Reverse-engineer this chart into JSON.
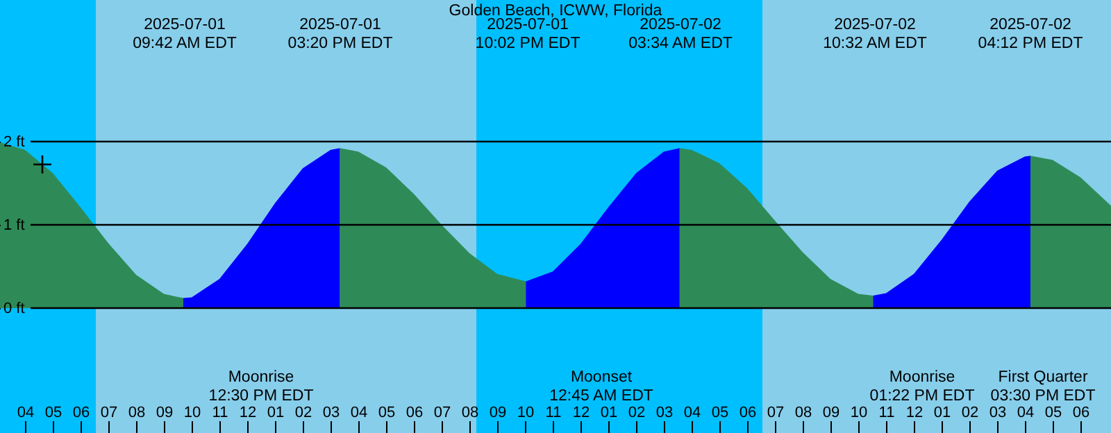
{
  "chart_data": {
    "type": "area",
    "title": "Golden Beach, ICWW, Florida",
    "x": [
      "2025-07-01T03:06",
      "2025-07-01T04:00",
      "2025-07-01T05:00",
      "2025-07-01T06:00",
      "2025-07-01T07:00",
      "2025-07-01T08:00",
      "2025-07-01T09:00",
      "2025-07-01T09:42",
      "2025-07-01T10:00",
      "2025-07-01T11:00",
      "2025-07-01T12:00",
      "2025-07-01T13:00",
      "2025-07-01T14:00",
      "2025-07-01T15:00",
      "2025-07-01T15:20",
      "2025-07-01T16:00",
      "2025-07-01T17:00",
      "2025-07-01T18:00",
      "2025-07-01T19:00",
      "2025-07-01T20:00",
      "2025-07-01T21:00",
      "2025-07-01T22:02",
      "2025-07-01T23:00",
      "2025-07-02T00:00",
      "2025-07-02T01:00",
      "2025-07-02T02:00",
      "2025-07-02T03:00",
      "2025-07-02T03:34",
      "2025-07-02T04:00",
      "2025-07-02T05:00",
      "2025-07-02T06:00",
      "2025-07-02T07:00",
      "2025-07-02T08:00",
      "2025-07-02T09:00",
      "2025-07-02T10:00",
      "2025-07-02T10:32",
      "2025-07-02T11:00",
      "2025-07-02T12:00",
      "2025-07-02T13:00",
      "2025-07-02T14:00",
      "2025-07-02T15:00",
      "2025-07-02T16:00",
      "2025-07-02T16:12",
      "2025-07-02T17:00",
      "2025-07-02T18:00",
      "2025-07-02T19:00",
      "2025-07-02T19:06"
    ],
    "series": [
      {
        "color": "#2e8b57",
        "values": [
          1.99,
          1.9,
          1.62,
          1.21,
          0.78,
          0.4,
          0.17,
          0.12,
          null,
          null,
          null,
          null,
          null,
          null,
          1.92,
          1.88,
          1.69,
          1.37,
          1.0,
          0.66,
          0.41,
          0.32,
          null,
          null,
          null,
          null,
          null,
          1.92,
          1.9,
          1.74,
          1.44,
          1.05,
          0.67,
          0.35,
          0.17,
          0.15,
          null,
          null,
          null,
          null,
          null,
          null,
          1.83,
          1.78,
          1.57,
          1.26,
          1.23
        ]
      },
      {
        "color": "#0000ff",
        "values": [
          null,
          null,
          null,
          null,
          null,
          null,
          null,
          0.12,
          0.13,
          0.35,
          0.77,
          1.26,
          1.68,
          1.9,
          1.92,
          null,
          null,
          null,
          null,
          null,
          null,
          0.32,
          0.44,
          0.77,
          1.21,
          1.62,
          1.88,
          1.92,
          null,
          null,
          null,
          null,
          null,
          null,
          null,
          0.15,
          0.18,
          0.41,
          0.82,
          1.28,
          1.65,
          1.82,
          1.83,
          null,
          null,
          null,
          null
        ]
      }
    ],
    "bands": [
      {
        "axis": "x",
        "from": "2025-07-01T03:06",
        "to": "2025-07-01T06:33",
        "color": "#00bfff"
      },
      {
        "axis": "x",
        "from": "2025-07-01T20:15",
        "to": "2025-07-02T06:33",
        "color": "#00bfff"
      }
    ],
    "xlim": [
      "2025-07-01T03:06",
      "2025-07-02T19:06"
    ],
    "xticks": [
      {
        "value": "2025-07-01T04:00",
        "label": "04"
      },
      {
        "value": "2025-07-01T05:00",
        "label": "05"
      },
      {
        "value": "2025-07-01T06:00",
        "label": "06"
      },
      {
        "value": "2025-07-01T07:00",
        "label": "07"
      },
      {
        "value": "2025-07-01T08:00",
        "label": "08"
      },
      {
        "value": "2025-07-01T09:00",
        "label": "09"
      },
      {
        "value": "2025-07-01T10:00",
        "label": "10"
      },
      {
        "value": "2025-07-01T11:00",
        "label": "11"
      },
      {
        "value": "2025-07-01T12:00",
        "label": "12"
      },
      {
        "value": "2025-07-01T13:00",
        "label": "01"
      },
      {
        "value": "2025-07-01T14:00",
        "label": "02"
      },
      {
        "value": "2025-07-01T15:00",
        "label": "03"
      },
      {
        "value": "2025-07-01T16:00",
        "label": "04"
      },
      {
        "value": "2025-07-01T17:00",
        "label": "05"
      },
      {
        "value": "2025-07-01T18:00",
        "label": "06"
      },
      {
        "value": "2025-07-01T19:00",
        "label": "07"
      },
      {
        "value": "2025-07-01T20:00",
        "label": "08"
      },
      {
        "value": "2025-07-01T21:00",
        "label": "09"
      },
      {
        "value": "2025-07-01T22:00",
        "label": "10"
      },
      {
        "value": "2025-07-01T23:00",
        "label": "11"
      },
      {
        "value": "2025-07-02T00:00",
        "label": "12"
      },
      {
        "value": "2025-07-02T01:00",
        "label": "01"
      },
      {
        "value": "2025-07-02T02:00",
        "label": "02"
      },
      {
        "value": "2025-07-02T03:00",
        "label": "03"
      },
      {
        "value": "2025-07-02T04:00",
        "label": "04"
      },
      {
        "value": "2025-07-02T05:00",
        "label": "05"
      },
      {
        "value": "2025-07-02T06:00",
        "label": "06"
      },
      {
        "value": "2025-07-02T07:00",
        "label": "07"
      },
      {
        "value": "2025-07-02T08:00",
        "label": "08"
      },
      {
        "value": "2025-07-02T09:00",
        "label": "09"
      },
      {
        "value": "2025-07-02T10:00",
        "label": "10"
      },
      {
        "value": "2025-07-02T11:00",
        "label": "11"
      },
      {
        "value": "2025-07-02T12:00",
        "label": "12"
      },
      {
        "value": "2025-07-02T13:00",
        "label": "01"
      },
      {
        "value": "2025-07-02T14:00",
        "label": "02"
      },
      {
        "value": "2025-07-02T15:00",
        "label": "03"
      },
      {
        "value": "2025-07-02T16:00",
        "label": "04"
      },
      {
        "value": "2025-07-02T17:00",
        "label": "05"
      },
      {
        "value": "2025-07-02T18:00",
        "label": "06"
      }
    ],
    "ylim": [
      -1.5,
      3.7
    ],
    "yticks": [
      {
        "value": 0,
        "label": "0 ft"
      },
      {
        "value": 1,
        "label": "1 ft"
      },
      {
        "value": 2,
        "label": "2 ft"
      }
    ],
    "grid": "y",
    "annotations": [
      "2025-07-01\n09:42 AM EDT",
      "2025-07-01\n03:20 PM EDT",
      "2025-07-01\n10:02 PM EDT",
      "2025-07-02\n03:34 AM EDT",
      "2025-07-02\n10:32 AM EDT",
      "2025-07-02\n04:12 PM EDT",
      "Moonrise\n12:30 PM EDT",
      "Moonset\n12:45 AM EDT",
      "Moonrise\n01:22 PM EDT",
      "First Quarter\n03:30 PM EDT"
    ]
  }
}
